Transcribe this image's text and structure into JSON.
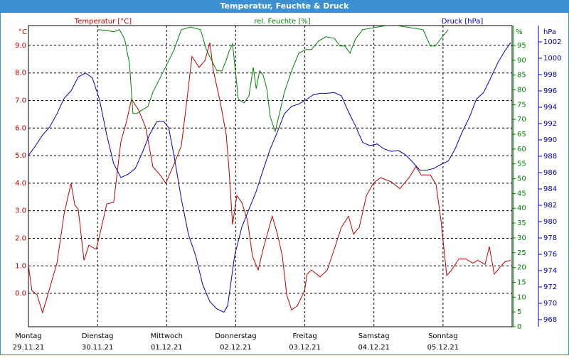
{
  "chart_data": {
    "type": "line",
    "title": "Temperatur, Feuchte & Druck",
    "xlim": [
      0,
      168
    ],
    "xticks": [
      {
        "value": 0,
        "label": "Montag"
      },
      {
        "value": 24,
        "label": "Dienstag"
      },
      {
        "value": 48,
        "label": "Mittwoch"
      },
      {
        "value": 72,
        "label": "Donnerstag"
      },
      {
        "value": 96,
        "label": "Freitag"
      },
      {
        "value": 120,
        "label": "Samstag"
      },
      {
        "value": 144,
        "label": "Sonntag"
      }
    ],
    "xtick_dates": [
      "29.11.21",
      "30.11.21",
      "01.12.21",
      "02.12.21",
      "03.12.21",
      "04.12.21",
      "05.12.21"
    ],
    "ylabel": "°C",
    "ylim": [
      -1.21,
      9.72
    ],
    "yticks": [
      {
        "value": 0,
        "label": "0.0"
      },
      {
        "value": 1,
        "label": "1.0"
      },
      {
        "value": 2,
        "label": "2.0"
      },
      {
        "value": 3,
        "label": "3.0"
      },
      {
        "value": 4,
        "label": "4.0"
      },
      {
        "value": 5,
        "label": "5.0"
      },
      {
        "value": 6,
        "label": "6.0"
      },
      {
        "value": 7,
        "label": "7.0"
      },
      {
        "value": 8,
        "label": "8.0"
      },
      {
        "value": 9,
        "label": "9.0"
      }
    ],
    "y2label": "%",
    "y2lim": [
      0,
      101.7
    ],
    "y2ticks": [
      0,
      5,
      10,
      15,
      20,
      25,
      30,
      35,
      40,
      45,
      50,
      55,
      60,
      65,
      70,
      75,
      80,
      85,
      90,
      95
    ],
    "y3label": "hPa",
    "y3lim": [
      967.13,
      1004.0
    ],
    "y3ticks": [
      968,
      970,
      972,
      974,
      976,
      978,
      980,
      982,
      984,
      986,
      988,
      990,
      992,
      994,
      996,
      998,
      1000,
      1002
    ],
    "grid": true,
    "series": [
      {
        "name": "Temperatur [°C]",
        "color": "#c00000",
        "axis": "y",
        "x": [
          0,
          1.2,
          3.0,
          4.9,
          7.4,
          9.9,
          12.4,
          14.8,
          16.1,
          17.3,
          19.3,
          21.0,
          23.5,
          24.7,
          27.2,
          29.6,
          32.1,
          34.1,
          35.8,
          38.3,
          40.8,
          43.2,
          45.7,
          47.7,
          50.6,
          53.1,
          54.8,
          56.8,
          59.3,
          61.3,
          63.0,
          64.2,
          66.7,
          68.7,
          69.7,
          70.9,
          72.4,
          74.1,
          76.1,
          77.8,
          79.8,
          81.5,
          84.7,
          86.5,
          88.2,
          89.7,
          91.4,
          93.4,
          95.9,
          96.8,
          98.3,
          100.1,
          101.3,
          103.8,
          106.2,
          108.7,
          111.2,
          112.9,
          114.9,
          117.4,
          119.8,
          122.3,
          126.0,
          129.0,
          132.2,
          134.6,
          136.4,
          139.6,
          141.6,
          143.3,
          145.3,
          147.0,
          149.5,
          151.9,
          154.4,
          156.1,
          158.6,
          160.1,
          161.8,
          163.8,
          165.5,
          167.5
        ],
        "values": [
          1.0,
          0.1,
          -0.05,
          -0.7,
          0.2,
          1.1,
          2.9,
          4.0,
          3.2,
          3.05,
          1.2,
          1.75,
          1.6,
          2.1,
          3.25,
          3.3,
          5.5,
          6.25,
          7.05,
          6.65,
          6.0,
          4.6,
          4.3,
          4.0,
          4.7,
          5.35,
          6.8,
          8.6,
          8.2,
          8.45,
          9.1,
          8.1,
          6.9,
          5.75,
          4.45,
          2.5,
          3.55,
          3.3,
          2.65,
          1.35,
          0.85,
          1.6,
          2.8,
          2.15,
          1.35,
          -0.05,
          -0.6,
          -0.45,
          0.1,
          0.7,
          0.85,
          0.7,
          0.6,
          0.85,
          1.6,
          2.4,
          2.8,
          2.15,
          2.4,
          3.55,
          4.0,
          4.2,
          4.05,
          3.8,
          4.2,
          4.6,
          4.3,
          4.3,
          3.95,
          2.65,
          0.65,
          0.85,
          1.25,
          1.25,
          1.1,
          1.2,
          1.05,
          1.7,
          0.7,
          0.95,
          1.15,
          1.2
        ]
      },
      {
        "name": "rel. Feuchte [%]",
        "color": "#008000",
        "axis": "y2",
        "x": [
          24.0,
          27.2,
          29.6,
          31.6,
          33.4,
          35.1,
          36.3,
          37.6,
          39.5,
          41.5,
          43.2,
          45.7,
          48.2,
          50.6,
          53.1,
          56.3,
          59.8,
          61.8,
          64.2,
          65.5,
          67.2,
          68.7,
          69.7,
          70.9,
          71.6,
          72.9,
          74.9,
          76.6,
          78.1,
          79.1,
          80.3,
          81.5,
          82.8,
          84.0,
          85.7,
          87.2,
          88.9,
          91.4,
          93.9,
          96.4,
          98.3,
          100.8,
          103.3,
          106.2,
          108.2,
          109.9,
          111.7,
          113.6,
          116.1,
          126.0,
          137.1,
          139.6,
          141.3,
          143.8,
          145.8
        ],
        "values": [
          100.3,
          100.1,
          99.6,
          100.3,
          97.2,
          88.8,
          72,
          72,
          73.2,
          74.4,
          79.2,
          84,
          88.8,
          93.6,
          100.3,
          101.2,
          100.3,
          93.6,
          88.8,
          86.4,
          86.4,
          90,
          93,
          95.5,
          89,
          76.8,
          75.6,
          78,
          87.6,
          80.4,
          86.4,
          85,
          80.4,
          70.8,
          66,
          72,
          79.2,
          86.4,
          92.4,
          93.6,
          93.6,
          96.5,
          97.9,
          97.4,
          94.8,
          94.8,
          92.4,
          97.2,
          100.3,
          102,
          100.3,
          94.8,
          94.8,
          97.9,
          100.3
        ]
      },
      {
        "name": "Druck [hPa]",
        "color": "#0000c0",
        "axis": "y3",
        "x": [
          0,
          2.5,
          4.9,
          7.4,
          9.9,
          12.4,
          14.8,
          17.3,
          19.8,
          22.2,
          24.7,
          27.2,
          29.6,
          32.1,
          34.6,
          37.1,
          39.5,
          42.0,
          44.5,
          46.9,
          48.7,
          50.6,
          53.1,
          55.6,
          58.1,
          60.5,
          63.0,
          65.5,
          67.9,
          69.2,
          71.6,
          74.1,
          76.6,
          79.1,
          81.5,
          84.0,
          86.5,
          88.9,
          91.4,
          93.9,
          96.4,
          98.8,
          101.3,
          103.8,
          106.2,
          108.7,
          111.2,
          113.6,
          116.1,
          118.6,
          121.1,
          123.5,
          126.0,
          128.5,
          130.9,
          133.4,
          135.9,
          138.4,
          140.8,
          143.3,
          145.8,
          148.2,
          150.7,
          153.2,
          155.6,
          158.1,
          160.6,
          163.1,
          165.5,
          167.5
        ],
        "values": [
          988.1,
          989.3,
          990.6,
          991.6,
          993.2,
          995.1,
          996.0,
          997.7,
          998.2,
          997.6,
          994.9,
          990.6,
          987.1,
          985.4,
          985.8,
          986.5,
          988.4,
          990.6,
          992.2,
          992.3,
          991.5,
          988.0,
          982.8,
          978.4,
          975.8,
          972.3,
          970.2,
          969.3,
          968.9,
          969.7,
          975.8,
          979.3,
          981.5,
          983.7,
          986.3,
          988.9,
          991.0,
          993.2,
          994.1,
          994.4,
          994.9,
          995.5,
          995.7,
          995.7,
          995.8,
          995.4,
          993.4,
          991.7,
          989.7,
          989.3,
          989.5,
          988.9,
          988.6,
          988.7,
          988.2,
          987.3,
          986.3,
          986.3,
          986.5,
          987.0,
          987.4,
          988.9,
          991.0,
          992.8,
          995.0,
          995.8,
          997.6,
          999.5,
          1000.9,
          1001.9
        ]
      }
    ]
  }
}
